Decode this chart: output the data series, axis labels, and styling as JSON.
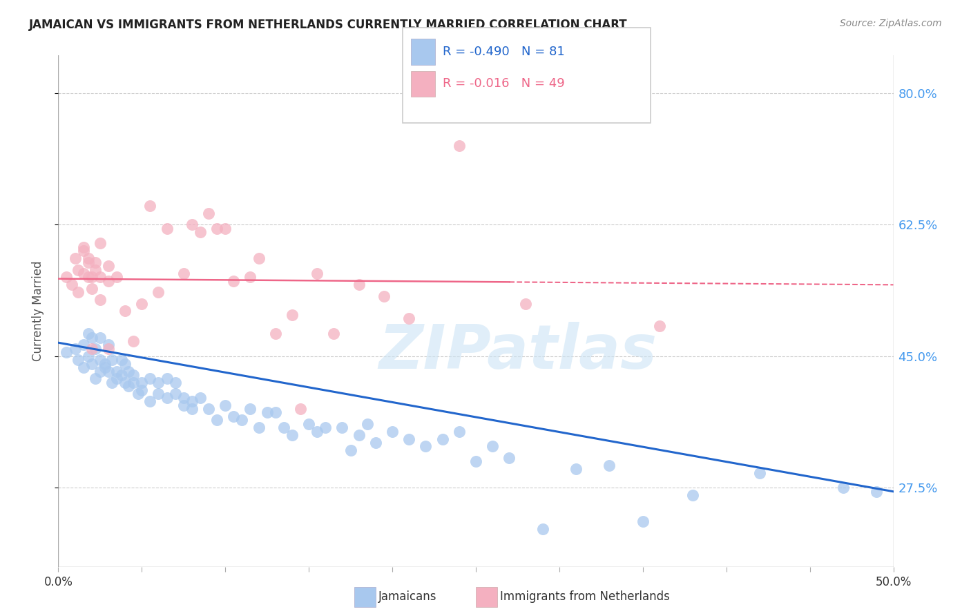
{
  "title": "JAMAICAN VS IMMIGRANTS FROM NETHERLANDS CURRENTLY MARRIED CORRELATION CHART",
  "source": "Source: ZipAtlas.com",
  "ylabel": "Currently Married",
  "y_ticks": [
    0.275,
    0.45,
    0.625,
    0.8
  ],
  "y_tick_labels": [
    "27.5%",
    "45.0%",
    "62.5%",
    "80.0%"
  ],
  "r_blue": -0.49,
  "n_blue": 81,
  "r_pink": -0.016,
  "n_pink": 49,
  "blue_color": "#A8C8EE",
  "pink_color": "#F4B0C0",
  "blue_line_color": "#2266CC",
  "pink_line_color": "#EE6688",
  "watermark": "ZIPatlas",
  "blue_scatter_x": [
    0.005,
    0.01,
    0.012,
    0.015,
    0.015,
    0.018,
    0.018,
    0.02,
    0.02,
    0.022,
    0.022,
    0.025,
    0.025,
    0.025,
    0.028,
    0.028,
    0.03,
    0.03,
    0.032,
    0.032,
    0.035,
    0.035,
    0.038,
    0.038,
    0.04,
    0.04,
    0.042,
    0.042,
    0.045,
    0.045,
    0.048,
    0.05,
    0.05,
    0.055,
    0.055,
    0.06,
    0.06,
    0.065,
    0.065,
    0.07,
    0.07,
    0.075,
    0.075,
    0.08,
    0.08,
    0.085,
    0.09,
    0.095,
    0.1,
    0.105,
    0.11,
    0.115,
    0.12,
    0.125,
    0.13,
    0.135,
    0.14,
    0.15,
    0.155,
    0.16,
    0.17,
    0.175,
    0.18,
    0.185,
    0.19,
    0.2,
    0.21,
    0.22,
    0.23,
    0.24,
    0.25,
    0.26,
    0.27,
    0.29,
    0.31,
    0.33,
    0.35,
    0.38,
    0.42,
    0.47,
    0.49
  ],
  "blue_scatter_y": [
    0.455,
    0.46,
    0.445,
    0.465,
    0.435,
    0.45,
    0.48,
    0.475,
    0.44,
    0.42,
    0.46,
    0.43,
    0.445,
    0.475,
    0.435,
    0.44,
    0.465,
    0.43,
    0.445,
    0.415,
    0.43,
    0.42,
    0.445,
    0.425,
    0.415,
    0.44,
    0.43,
    0.41,
    0.425,
    0.415,
    0.4,
    0.415,
    0.405,
    0.42,
    0.39,
    0.415,
    0.4,
    0.395,
    0.42,
    0.4,
    0.415,
    0.385,
    0.395,
    0.39,
    0.38,
    0.395,
    0.38,
    0.365,
    0.385,
    0.37,
    0.365,
    0.38,
    0.355,
    0.375,
    0.375,
    0.355,
    0.345,
    0.36,
    0.35,
    0.355,
    0.355,
    0.325,
    0.345,
    0.36,
    0.335,
    0.35,
    0.34,
    0.33,
    0.34,
    0.35,
    0.31,
    0.33,
    0.315,
    0.22,
    0.3,
    0.305,
    0.23,
    0.265,
    0.295,
    0.275,
    0.27
  ],
  "pink_scatter_x": [
    0.005,
    0.008,
    0.01,
    0.012,
    0.012,
    0.015,
    0.015,
    0.015,
    0.018,
    0.018,
    0.018,
    0.02,
    0.02,
    0.02,
    0.022,
    0.022,
    0.025,
    0.025,
    0.025,
    0.03,
    0.03,
    0.03,
    0.035,
    0.04,
    0.045,
    0.05,
    0.055,
    0.06,
    0.065,
    0.075,
    0.08,
    0.085,
    0.09,
    0.095,
    0.1,
    0.105,
    0.115,
    0.12,
    0.13,
    0.14,
    0.145,
    0.155,
    0.165,
    0.18,
    0.195,
    0.21,
    0.24,
    0.28,
    0.36
  ],
  "pink_scatter_y": [
    0.555,
    0.545,
    0.58,
    0.535,
    0.565,
    0.595,
    0.59,
    0.56,
    0.555,
    0.575,
    0.58,
    0.46,
    0.54,
    0.555,
    0.565,
    0.575,
    0.6,
    0.525,
    0.555,
    0.46,
    0.55,
    0.57,
    0.555,
    0.51,
    0.47,
    0.52,
    0.65,
    0.535,
    0.62,
    0.56,
    0.625,
    0.615,
    0.64,
    0.62,
    0.62,
    0.55,
    0.555,
    0.58,
    0.48,
    0.505,
    0.38,
    0.56,
    0.48,
    0.545,
    0.53,
    0.5,
    0.73,
    0.52,
    0.49
  ],
  "xlim": [
    0.0,
    0.5
  ],
  "ylim": [
    0.17,
    0.85
  ],
  "blue_trendline_x": [
    0.0,
    0.5
  ],
  "blue_trendline_y": [
    0.468,
    0.27
  ],
  "pink_trendline_x": [
    0.0,
    0.5
  ],
  "pink_trendline_y": [
    0.553,
    0.545
  ]
}
